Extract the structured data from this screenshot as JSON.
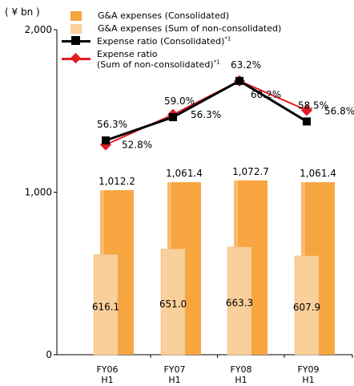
{
  "unit_label": "( ¥ bn )",
  "colors": {
    "consolidated_bar": "#f7a541",
    "nonconsolidated_bar": "#f9cf9a",
    "consolidated_ratio": "#000000",
    "nonconsolidated_ratio": "#e31c23"
  },
  "legend": {
    "items": [
      {
        "label": "G&A expenses (Consolidated)",
        "sup": ""
      },
      {
        "label": "G&A expenses (Sum of non-consolidated)",
        "sup": ""
      },
      {
        "label": "Expense ratio (Consolidated)",
        "sup": "*1"
      },
      {
        "label": "Expense ratio\n(Sum of non-consolidated)",
        "sup": "*1"
      }
    ]
  },
  "chart_data": {
    "type": "bar",
    "categories": [
      "FY06\nH1",
      "FY07\nH1",
      "FY08\nH1",
      "FY09\nH1"
    ],
    "y_ticks": [
      "0",
      "1,000",
      "2,000"
    ],
    "ylim": [
      0,
      2000
    ],
    "series": [
      {
        "name": "G&A expenses (Consolidated)",
        "kind": "bar",
        "values": [
          1012.2,
          1061.4,
          1072.7,
          1061.4
        ],
        "labels": [
          "1,012.2",
          "1,061.4",
          "1,072.7",
          "1,061.4"
        ]
      },
      {
        "name": "G&A expenses (Sum of non-consolidated)",
        "kind": "bar",
        "values": [
          616.1,
          651.0,
          663.3,
          607.9
        ],
        "labels": [
          "616.1",
          "651.0",
          "663.3",
          "607.9"
        ]
      },
      {
        "name": "Expense ratio (Consolidated)",
        "kind": "line",
        "values": [
          56.3,
          59.0,
          63.2,
          58.5
        ],
        "labels": [
          "56.3%",
          "59.0%",
          "63.2%",
          "58.5%"
        ]
      },
      {
        "name": "Expense ratio (Sum of non-consolidated)",
        "kind": "line",
        "values": [
          52.8,
          56.3,
          60.2,
          56.8
        ],
        "labels": [
          "52.8%",
          "56.3%",
          "60.2%",
          "56.8%"
        ]
      }
    ],
    "grid": false,
    "legend_position": "top"
  }
}
